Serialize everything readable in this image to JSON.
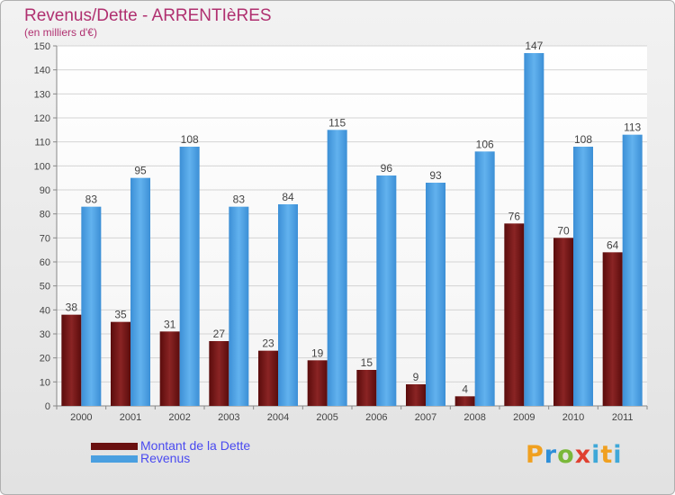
{
  "chart_data": {
    "type": "bar",
    "title": "Revenus/Dette - ARRENTIèRES",
    "subtitle": "(en milliers d'€)",
    "categories": [
      "2000",
      "2001",
      "2002",
      "2003",
      "2004",
      "2005",
      "2006",
      "2007",
      "2008",
      "2009",
      "2010",
      "2011"
    ],
    "series": [
      {
        "name": "Montant de la Dette",
        "color": "#7a1818",
        "values": [
          38,
          35,
          31,
          27,
          23,
          19,
          15,
          9,
          4,
          76,
          70,
          64
        ]
      },
      {
        "name": "Revenus",
        "color": "#4a9fe0",
        "values": [
          83,
          95,
          108,
          83,
          84,
          115,
          96,
          93,
          106,
          147,
          108,
          113
        ]
      }
    ],
    "ylim": [
      0,
      150
    ],
    "ytick_step": 10,
    "grid": true,
    "legend_position": "bottom-left"
  },
  "logo_text": "Proxiti"
}
